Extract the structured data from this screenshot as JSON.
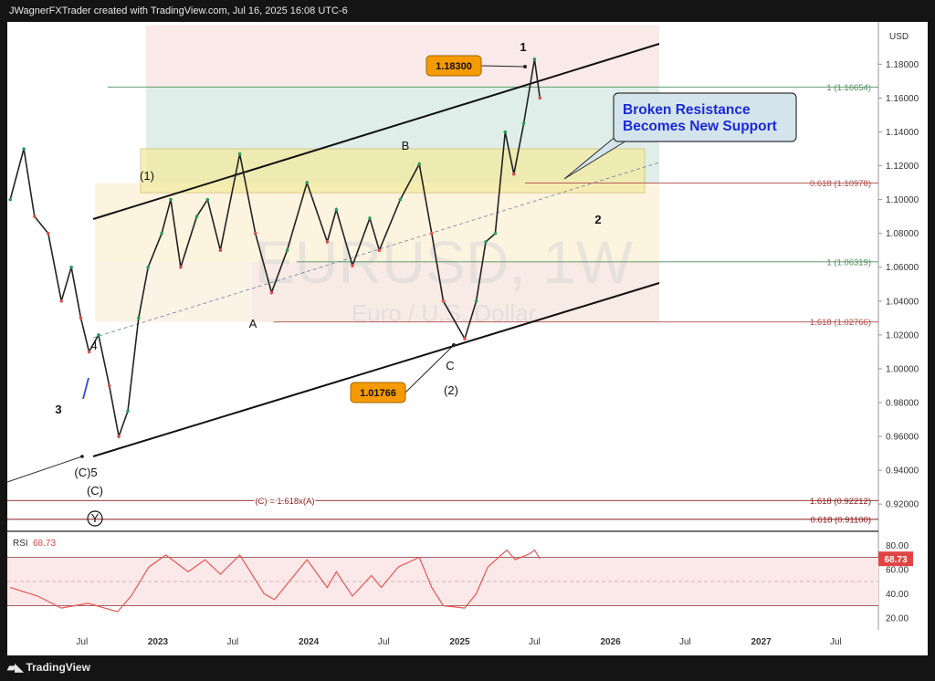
{
  "header": "JWagnerFXTrader created with TradingView.com, Jul 16, 2025 16:08 UTC-6",
  "brand": "TradingView",
  "brand_logo": "TV logo",
  "currency": "USD",
  "watermark": {
    "symbol": "EURUSD, 1W",
    "name": "Euro / U.S. Dollar"
  },
  "annotation": {
    "line1": "Broken Resistance",
    "line2": "Becomes New Support"
  },
  "price_labels": {
    "high": "1.18300",
    "low": "1.01766"
  },
  "fib_levels": [
    {
      "label": "1 (1.16654)",
      "value": 1.16654,
      "color": "#4c8f5a",
      "x_start": "2022-09-01"
    },
    {
      "label": "0.618 (1.10978)",
      "value": 1.10978,
      "color": "#b04a4a",
      "x_start": "2025-06-08"
    },
    {
      "label": "1 (1.06319)",
      "value": 1.06319,
      "color": "#4c8f5a",
      "x_start": "2023-12-03"
    },
    {
      "label": "1.618 (1.02766)",
      "value": 1.02766,
      "color": "#b04a4a",
      "x_start": "2023-10-08"
    },
    {
      "label": "1.618 (0.92212)",
      "value": 0.92212,
      "color": "#8b1a1a",
      "x_start": "2022-01-01"
    },
    {
      "label": "0.618 (0.91100)",
      "value": 0.911,
      "color": "#8b1a1a",
      "x_start": "2022-01-01"
    }
  ],
  "fib_note": "(C) = 1.618x(A)",
  "wave_labels": {
    "w1": "1",
    "w2": "2",
    "wB": "B",
    "wA": "A",
    "wC": "C",
    "wp1": "(1)",
    "wp2": "(2)",
    "w3": "3",
    "w4": "4",
    "wC5": "(C)5",
    "wpC": "(C)",
    "wY": "Y"
  },
  "rsi": {
    "label": "RSI",
    "value": "68.73",
    "levels": [
      "80.00",
      "60.00",
      "40.00",
      "20.00"
    ],
    "upper": 70,
    "mid": 50,
    "lower": 30
  },
  "chart_data": {
    "type": "line",
    "title": "EURUSD, 1W",
    "subtitle": "Euro / U.S. Dollar",
    "ylabel": "USD",
    "ylim": [
      0.905,
      1.205
    ],
    "yticks": [
      "1.18000",
      "1.16000",
      "1.14000",
      "1.12000",
      "1.10000",
      "1.08000",
      "1.06000",
      "1.04000",
      "1.02000",
      "1.00000",
      "0.98000",
      "0.96000",
      "0.94000",
      "0.92000"
    ],
    "xtick_labels": [
      {
        "label": "Jul",
        "x": "2022-07-01"
      },
      {
        "label": "2023",
        "x": "2023-01-01"
      },
      {
        "label": "Jul",
        "x": "2023-07-01"
      },
      {
        "label": "2024",
        "x": "2024-01-01"
      },
      {
        "label": "Jul",
        "x": "2024-07-01"
      },
      {
        "label": "2025",
        "x": "2025-01-01"
      },
      {
        "label": "Jul",
        "x": "2025-07-01"
      },
      {
        "label": "2026",
        "x": "2026-01-01"
      },
      {
        "label": "Jul",
        "x": "2026-07-01"
      },
      {
        "label": "2027",
        "x": "2027-01-01"
      },
      {
        "label": "Jul",
        "x": "2027-07-01"
      }
    ],
    "price_path": [
      {
        "x": "2022-01-08",
        "y": 1.1
      },
      {
        "x": "2022-02-10",
        "y": 1.13
      },
      {
        "x": "2022-03-08",
        "y": 1.09
      },
      {
        "x": "2022-04-10",
        "y": 1.08
      },
      {
        "x": "2022-05-12",
        "y": 1.04
      },
      {
        "x": "2022-06-05",
        "y": 1.06
      },
      {
        "x": "2022-06-28",
        "y": 1.03
      },
      {
        "x": "2022-07-18",
        "y": 1.01
      },
      {
        "x": "2022-08-10",
        "y": 1.02
      },
      {
        "x": "2022-09-05",
        "y": 0.99
      },
      {
        "x": "2022-09-28",
        "y": 0.96
      },
      {
        "x": "2022-10-20",
        "y": 0.975
      },
      {
        "x": "2022-11-15",
        "y": 1.03
      },
      {
        "x": "2022-12-08",
        "y": 1.06
      },
      {
        "x": "2023-01-10",
        "y": 1.08
      },
      {
        "x": "2023-02-01",
        "y": 1.1
      },
      {
        "x": "2023-02-25",
        "y": 1.06
      },
      {
        "x": "2023-04-05",
        "y": 1.09
      },
      {
        "x": "2023-05-01",
        "y": 1.1
      },
      {
        "x": "2023-06-01",
        "y": 1.07
      },
      {
        "x": "2023-07-18",
        "y": 1.127
      },
      {
        "x": "2023-08-25",
        "y": 1.08
      },
      {
        "x": "2023-10-03",
        "y": 1.045
      },
      {
        "x": "2023-11-10",
        "y": 1.07
      },
      {
        "x": "2023-12-28",
        "y": 1.11
      },
      {
        "x": "2024-02-15",
        "y": 1.075
      },
      {
        "x": "2024-03-08",
        "y": 1.094
      },
      {
        "x": "2024-04-16",
        "y": 1.061
      },
      {
        "x": "2024-05-28",
        "y": 1.089
      },
      {
        "x": "2024-06-20",
        "y": 1.07
      },
      {
        "x": "2024-08-10",
        "y": 1.1
      },
      {
        "x": "2024-09-25",
        "y": 1.121
      },
      {
        "x": "2024-10-25",
        "y": 1.08
      },
      {
        "x": "2024-11-22",
        "y": 1.04
      },
      {
        "x": "2025-01-13",
        "y": 1.0177
      },
      {
        "x": "2025-02-10",
        "y": 1.04
      },
      {
        "x": "2025-03-05",
        "y": 1.075
      },
      {
        "x": "2025-03-28",
        "y": 1.08
      },
      {
        "x": "2025-04-21",
        "y": 1.14
      },
      {
        "x": "2025-05-12",
        "y": 1.115
      },
      {
        "x": "2025-06-05",
        "y": 1.145
      },
      {
        "x": "2025-07-01",
        "y": 1.183
      },
      {
        "x": "2025-07-14",
        "y": 1.16
      }
    ],
    "rsi_path": [
      {
        "x": "2022-01-08",
        "y": 45
      },
      {
        "x": "2022-03-15",
        "y": 38
      },
      {
        "x": "2022-05-12",
        "y": 28
      },
      {
        "x": "2022-07-15",
        "y": 32
      },
      {
        "x": "2022-09-25",
        "y": 25
      },
      {
        "x": "2022-10-28",
        "y": 38
      },
      {
        "x": "2022-12-10",
        "y": 62
      },
      {
        "x": "2023-01-20",
        "y": 72
      },
      {
        "x": "2023-03-15",
        "y": 58
      },
      {
        "x": "2023-04-25",
        "y": 68
      },
      {
        "x": "2023-06-01",
        "y": 56
      },
      {
        "x": "2023-07-18",
        "y": 72
      },
      {
        "x": "2023-09-15",
        "y": 40
      },
      {
        "x": "2023-10-10",
        "y": 35
      },
      {
        "x": "2023-12-28",
        "y": 68
      },
      {
        "x": "2024-02-15",
        "y": 45
      },
      {
        "x": "2024-03-08",
        "y": 58
      },
      {
        "x": "2024-04-16",
        "y": 38
      },
      {
        "x": "2024-06-01",
        "y": 55
      },
      {
        "x": "2024-06-25",
        "y": 45
      },
      {
        "x": "2024-08-05",
        "y": 62
      },
      {
        "x": "2024-09-25",
        "y": 70
      },
      {
        "x": "2024-10-25",
        "y": 45
      },
      {
        "x": "2024-11-22",
        "y": 30
      },
      {
        "x": "2025-01-13",
        "y": 28
      },
      {
        "x": "2025-02-10",
        "y": 40
      },
      {
        "x": "2025-03-10",
        "y": 62
      },
      {
        "x": "2025-04-25",
        "y": 76
      },
      {
        "x": "2025-05-15",
        "y": 68
      },
      {
        "x": "2025-06-20",
        "y": 73
      },
      {
        "x": "2025-07-01",
        "y": 76
      },
      {
        "x": "2025-07-14",
        "y": 68.73
      }
    ]
  },
  "colors": {
    "price_line": "#222222",
    "rsi_line": "#e85555",
    "label_box": "#f59a00",
    "annotation_box": "#d4e4ec",
    "annotation_text": "#1a2ad8",
    "resistance_zone": "#f3eaa0"
  }
}
